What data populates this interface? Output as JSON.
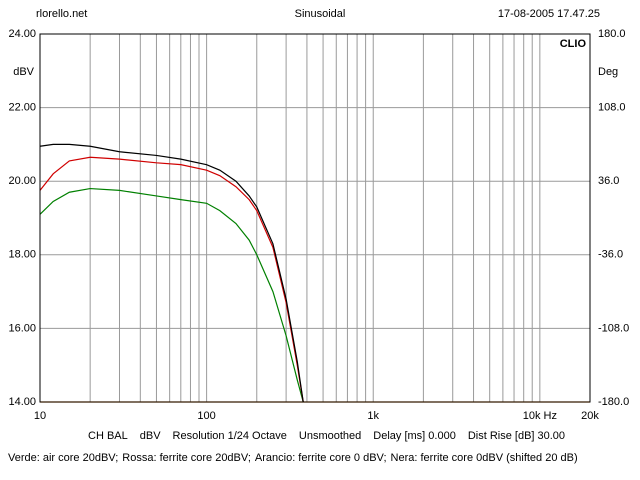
{
  "header": {
    "site": "rlorello.net",
    "mode": "Sinusoidal",
    "timestamp": "17-08-2005 17.47.25"
  },
  "chart_data": {
    "type": "line",
    "brand": "CLIO",
    "y_label": "dBV",
    "y2_label": "Deg",
    "xscale": "log",
    "grid": true,
    "xlim": [
      10,
      20000
    ],
    "xticks": [
      10,
      100,
      {
        "value": 1000,
        "label": "1k"
      },
      {
        "value": 10000,
        "label": "10k Hz"
      },
      {
        "value": 20000,
        "label": "20k"
      }
    ],
    "xgrid": [
      20,
      30,
      40,
      50,
      60,
      70,
      80,
      90,
      200,
      300,
      400,
      500,
      600,
      700,
      800,
      900,
      2000,
      3000,
      4000,
      5000,
      6000,
      7000,
      8000,
      9000
    ],
    "ylim": [
      14,
      24
    ],
    "yticks": [
      {
        "value": 14,
        "label": "14.00"
      },
      {
        "value": 16,
        "label": "16.00"
      },
      {
        "value": 18,
        "label": "18.00"
      },
      {
        "value": 20,
        "label": "20.00"
      },
      {
        "value": 22,
        "label": "22.00"
      },
      {
        "value": 24,
        "label": "24.00"
      }
    ],
    "y2lim": [
      -180,
      180
    ],
    "y2ticks": [
      {
        "value": -180,
        "label": "-180.0"
      },
      {
        "value": -108,
        "label": "-108.0"
      },
      {
        "value": -36,
        "label": "-36.0"
      },
      {
        "value": 36,
        "label": "36.0"
      },
      {
        "value": 108,
        "label": "108.0"
      },
      {
        "value": 180,
        "label": "180.0"
      }
    ],
    "series": [
      {
        "color": "#ff8000",
        "x": [
          10,
          20000
        ],
        "values": [
          14,
          14
        ]
      },
      {
        "color": "#008000",
        "x": [
          10,
          12,
          15,
          20,
          30,
          50,
          70,
          100,
          120,
          150,
          180,
          200,
          250,
          300,
          350,
          380
        ],
        "values": [
          19.1,
          19.45,
          19.7,
          19.8,
          19.75,
          19.6,
          19.5,
          19.4,
          19.2,
          18.85,
          18.4,
          18.0,
          17.0,
          15.8,
          14.6,
          14.0
        ]
      },
      {
        "color": "#d00000",
        "x": [
          10,
          12,
          15,
          20,
          30,
          50,
          70,
          100,
          120,
          150,
          180,
          200,
          250,
          300,
          350,
          380
        ],
        "values": [
          19.75,
          20.2,
          20.55,
          20.65,
          20.6,
          20.5,
          20.45,
          20.3,
          20.15,
          19.85,
          19.5,
          19.2,
          18.2,
          16.7,
          15.0,
          14.0
        ]
      },
      {
        "color": "#000000",
        "x": [
          10,
          12,
          15,
          20,
          30,
          50,
          70,
          100,
          120,
          150,
          180,
          200,
          250,
          300,
          350,
          380
        ],
        "values": [
          20.95,
          21.0,
          21.0,
          20.95,
          20.8,
          20.7,
          20.6,
          20.45,
          20.3,
          20.0,
          19.6,
          19.3,
          18.3,
          16.8,
          15.1,
          14.0
        ]
      }
    ]
  },
  "settings_line": [
    "CH BAL",
    "dBV",
    "Resolution 1/24 Octave",
    "Unsmoothed",
    "Delay [ms] 0.000",
    "Dist Rise [dB] 30.00"
  ],
  "legend_line": [
    "Verde: air core 20dBV;",
    "Rossa: ferrite core 20dBV;",
    "Arancio: ferrite core 0 dBV;",
    "Nera: ferrite core 0dBV (shifted 20 dB)"
  ]
}
